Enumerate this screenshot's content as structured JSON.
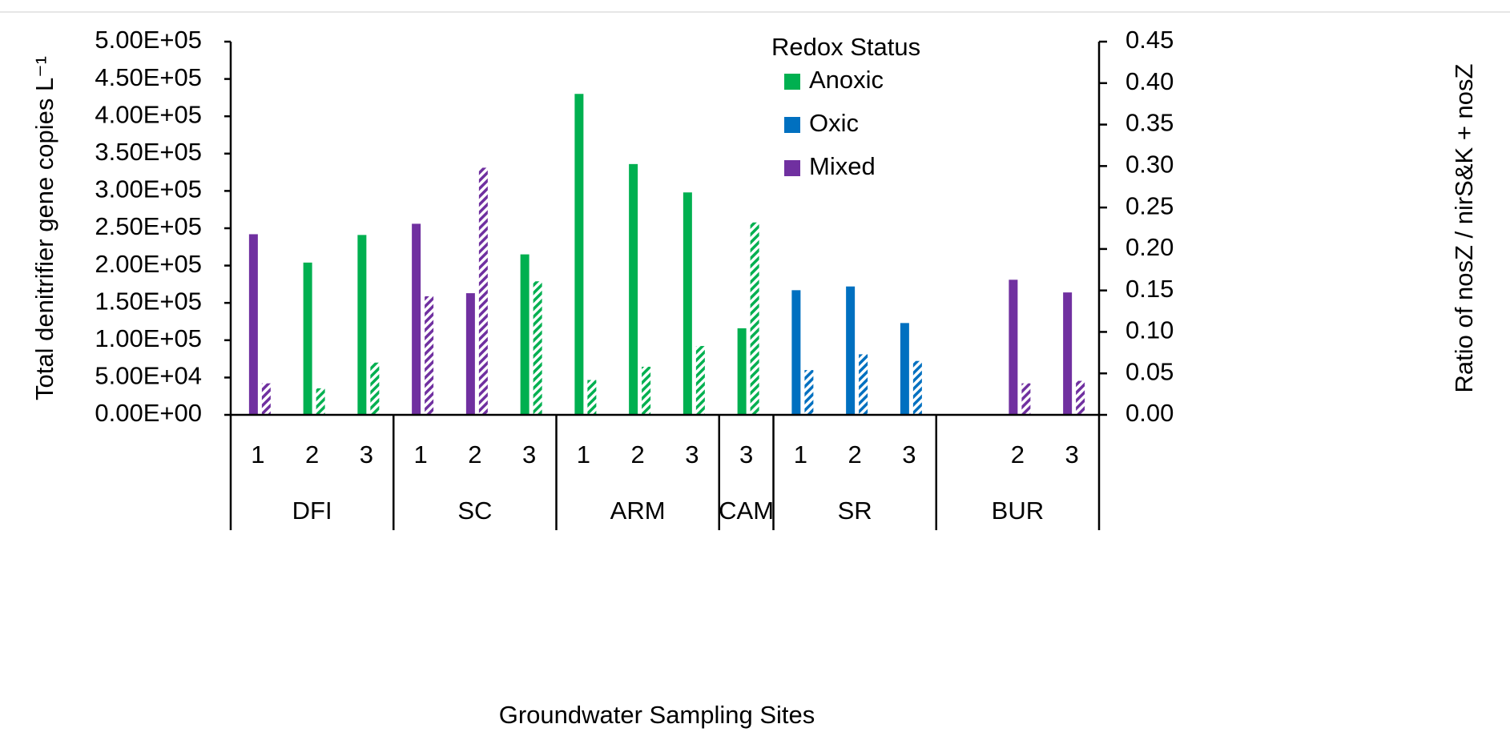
{
  "chart_data": {
    "type": "bar",
    "ylabel": "Total denitrifier gene copies  L⁻¹",
    "y2label": "Ratio of nosZ / nirS&K + nosZ",
    "xlabel": "Groundwater Sampling Sites",
    "categories": [
      "1",
      "2",
      "3",
      "1",
      "2",
      "3",
      "1",
      "2",
      "3",
      "3",
      "1",
      "2",
      "3",
      null,
      "2",
      "3"
    ],
    "groups": [
      {
        "label": "DFI",
        "span": 3
      },
      {
        "label": "SC",
        "span": 3
      },
      {
        "label": "ARM",
        "span": 3
      },
      {
        "label": "CAM",
        "span": 1
      },
      {
        "label": "SR",
        "span": 3
      },
      {
        "label": "BUR",
        "span": 3
      }
    ],
    "colors": [
      "#7030a0",
      "#00b050",
      "#00b050",
      "#7030a0",
      "#7030a0",
      "#00b050",
      "#00b050",
      "#00b050",
      "#00b050",
      "#00b050",
      "#0070c0",
      "#0070c0",
      "#0070c0",
      "#7030a0",
      "#7030a0",
      "#7030a0"
    ],
    "series": [
      {
        "values": [
          242000,
          204000,
          241000,
          256000,
          163000,
          215000,
          430000,
          336000,
          298000,
          116000,
          167000,
          172000,
          123000,
          null,
          181000,
          164000
        ]
      },
      {
        "axis": "y2",
        "hatched": true,
        "values": [
          0.038,
          0.032,
          0.063,
          0.143,
          0.298,
          0.161,
          0.042,
          0.058,
          0.083,
          0.232,
          0.054,
          0.073,
          0.065,
          null,
          0.038,
          0.041
        ]
      }
    ],
    "ylim": [
      0,
      500000
    ],
    "yticks": [
      {
        "value": 0,
        "label": "0.00E+00"
      },
      {
        "value": 50000,
        "label": "5.00E+04"
      },
      {
        "value": 100000,
        "label": "1.00E+05"
      },
      {
        "value": 150000,
        "label": "1.50E+05"
      },
      {
        "value": 200000,
        "label": "2.00E+05"
      },
      {
        "value": 250000,
        "label": "2.50E+05"
      },
      {
        "value": 300000,
        "label": "3.00E+05"
      },
      {
        "value": 350000,
        "label": "3.50E+05"
      },
      {
        "value": 400000,
        "label": "4.00E+05"
      },
      {
        "value": 450000,
        "label": "4.50E+05"
      },
      {
        "value": 500000,
        "label": "5.00E+05"
      }
    ],
    "y2lim": [
      0,
      0.45
    ],
    "y2ticks": [
      {
        "value": 0,
        "label": "0.00"
      },
      0.05,
      {
        "value": 0.1,
        "label": "0.10"
      },
      0.15,
      {
        "value": 0.2,
        "label": "0.20"
      },
      0.25,
      {
        "value": 0.3,
        "label": "0.30"
      },
      0.35,
      {
        "value": 0.4,
        "label": "0.40"
      },
      0.45
    ],
    "legend": {
      "title": "Redox Status",
      "position": "top",
      "entries": [
        {
          "name": "Anoxic",
          "color": "#00b050"
        },
        {
          "name": "Oxic",
          "color": "#0070c0"
        },
        {
          "name": "Mixed",
          "color": "#7030a0"
        }
      ]
    }
  }
}
